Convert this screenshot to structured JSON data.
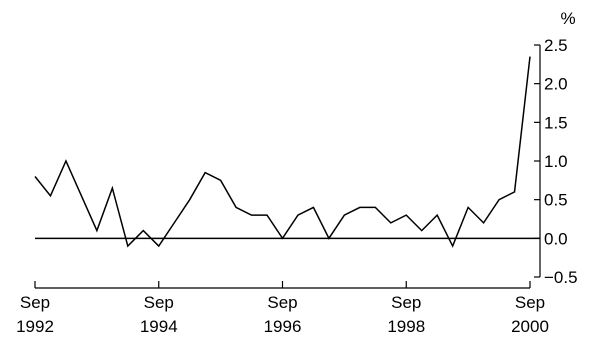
{
  "chart_data": {
    "type": "line",
    "title": "",
    "xlabel": "",
    "ylabel": "%",
    "ylim": [
      -0.5,
      2.5
    ],
    "yticks": [
      -0.5,
      0.0,
      0.5,
      1.0,
      1.5,
      2.0,
      2.5
    ],
    "ytick_labels": [
      "−0.5",
      "0.0",
      "0.5",
      "1.0",
      "1.5",
      "2.0",
      "2.5"
    ],
    "y_axis_side": "right",
    "zero_line": true,
    "grid": false,
    "xticks": [
      {
        "month": "Sep",
        "year": "1992"
      },
      {
        "month": "Sep",
        "year": "1994"
      },
      {
        "month": "Sep",
        "year": "1996"
      },
      {
        "month": "Sep",
        "year": "1998"
      },
      {
        "month": "Sep",
        "year": "2000"
      }
    ],
    "series": [
      {
        "frequency": "quarterly",
        "start": "Sep 1992",
        "end": "Sep 2000",
        "color": "#000000",
        "values": [
          0.8,
          0.55,
          1.0,
          0.55,
          0.1,
          0.65,
          -0.1,
          0.1,
          -0.1,
          0.2,
          0.5,
          0.85,
          0.75,
          0.4,
          0.3,
          0.3,
          0.0,
          0.3,
          0.4,
          0.0,
          0.3,
          0.4,
          0.4,
          0.2,
          0.3,
          0.1,
          0.3,
          -0.1,
          0.4,
          0.2,
          0.5,
          0.6,
          2.35
        ]
      }
    ]
  }
}
